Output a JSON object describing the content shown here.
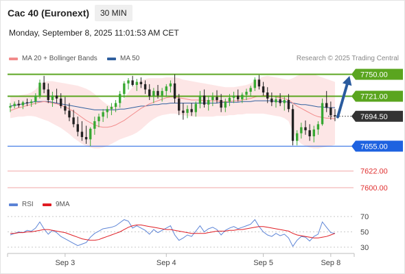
{
  "header": {
    "title": "Cac 40 (Euronext)",
    "interval": "30 MIN",
    "datetime": "Monday, September 8, 2025 11:01:53 AM CET",
    "copyright": "Research © 2025 Trading Central"
  },
  "legend": {
    "main": [
      {
        "label": "MA 20 + Bollinger Bands",
        "color": "#f28b8b"
      },
      {
        "label": "MA 50",
        "color": "#2f5f9e"
      }
    ],
    "rsi": [
      {
        "label": "RSI",
        "color": "#5b83d6"
      },
      {
        "label": "9MA",
        "color": "#e01b22"
      }
    ]
  },
  "chart_data": [
    {
      "type": "candlestick",
      "ylim": [
        7590,
        7765
      ],
      "current_price": 7694.5,
      "levels": [
        {
          "value": 7750.0,
          "label": "7750.00",
          "kind": "resistance",
          "color": "#5aa51f"
        },
        {
          "value": 7721.0,
          "label": "7721.00",
          "kind": "resistance",
          "color": "#5aa51f"
        },
        {
          "value": 7694.5,
          "label": "7694.50",
          "kind": "last",
          "color": "#333333"
        },
        {
          "value": 7655.0,
          "label": "7655.00",
          "kind": "pivot",
          "color": "#1e62e0"
        },
        {
          "value": 7622.0,
          "label": "7622.00",
          "kind": "support",
          "color": "#e03030"
        },
        {
          "value": 7600.0,
          "label": "7600.00",
          "kind": "support",
          "color": "#e03030"
        }
      ],
      "x_labels": [
        "Sep 3",
        "Sep 4",
        "Sep 5",
        "Sep 8"
      ],
      "ohlc": [
        [
          7706,
          7712,
          7700,
          7708
        ],
        [
          7708,
          7714,
          7705,
          7711
        ],
        [
          7711,
          7716,
          7706,
          7709
        ],
        [
          7709,
          7715,
          7704,
          7713
        ],
        [
          7713,
          7718,
          7708,
          7712
        ],
        [
          7712,
          7717,
          7707,
          7714
        ],
        [
          7714,
          7725,
          7710,
          7722
        ],
        [
          7722,
          7743,
          7718,
          7739
        ],
        [
          7739,
          7748,
          7725,
          7730
        ],
        [
          7730,
          7738,
          7712,
          7716
        ],
        [
          7716,
          7727,
          7707,
          7722
        ],
        [
          7722,
          7731,
          7712,
          7718
        ],
        [
          7718,
          7725,
          7705,
          7708
        ],
        [
          7708,
          7720,
          7697,
          7702
        ],
        [
          7702,
          7712,
          7688,
          7693
        ],
        [
          7693,
          7703,
          7680,
          7684
        ],
        [
          7684,
          7694,
          7668,
          7674
        ],
        [
          7674,
          7688,
          7662,
          7667
        ],
        [
          7667,
          7682,
          7658,
          7664
        ],
        [
          7664,
          7680,
          7655,
          7678
        ],
        [
          7678,
          7694,
          7670,
          7688
        ],
        [
          7688,
          7698,
          7680,
          7694
        ],
        [
          7694,
          7704,
          7687,
          7700
        ],
        [
          7700,
          7708,
          7692,
          7704
        ],
        [
          7704,
          7712,
          7696,
          7707
        ],
        [
          7707,
          7716,
          7700,
          7712
        ],
        [
          7712,
          7728,
          7706,
          7724
        ],
        [
          7724,
          7741,
          7719,
          7738
        ],
        [
          7738,
          7745,
          7730,
          7742
        ],
        [
          7742,
          7748,
          7734,
          7736
        ],
        [
          7736,
          7744,
          7728,
          7740
        ],
        [
          7740,
          7746,
          7732,
          7737
        ],
        [
          7737,
          7742,
          7724,
          7730
        ],
        [
          7730,
          7737,
          7716,
          7721
        ],
        [
          7721,
          7732,
          7712,
          7728
        ],
        [
          7728,
          7736,
          7718,
          7722
        ],
        [
          7722,
          7732,
          7714,
          7728
        ],
        [
          7728,
          7737,
          7720,
          7734
        ],
        [
          7734,
          7742,
          7726,
          7738
        ],
        [
          7738,
          7750,
          7712,
          7718
        ],
        [
          7718,
          7724,
          7696,
          7702
        ],
        [
          7702,
          7712,
          7690,
          7699
        ],
        [
          7699,
          7709,
          7692,
          7704
        ],
        [
          7704,
          7712,
          7695,
          7700
        ],
        [
          7700,
          7714,
          7694,
          7711
        ],
        [
          7711,
          7728,
          7705,
          7722
        ],
        [
          7722,
          7730,
          7706,
          7710
        ],
        [
          7710,
          7722,
          7702,
          7716
        ],
        [
          7716,
          7726,
          7708,
          7720
        ],
        [
          7720,
          7729,
          7712,
          7716
        ],
        [
          7716,
          7724,
          7700,
          7706
        ],
        [
          7706,
          7718,
          7700,
          7714
        ],
        [
          7714,
          7724,
          7708,
          7719
        ],
        [
          7719,
          7727,
          7712,
          7722
        ],
        [
          7722,
          7730,
          7714,
          7717
        ],
        [
          7717,
          7726,
          7712,
          7723
        ],
        [
          7723,
          7731,
          7716,
          7727
        ],
        [
          7727,
          7735,
          7721,
          7732
        ],
        [
          7732,
          7746,
          7728,
          7743
        ],
        [
          7743,
          7749,
          7730,
          7734
        ],
        [
          7734,
          7740,
          7722,
          7726
        ],
        [
          7726,
          7733,
          7712,
          7718
        ],
        [
          7718,
          7726,
          7708,
          7713
        ],
        [
          7713,
          7722,
          7706,
          7717
        ],
        [
          7717,
          7725,
          7708,
          7712
        ],
        [
          7712,
          7720,
          7702,
          7716
        ],
        [
          7716,
          7724,
          7700,
          7704
        ],
        [
          7704,
          7710,
          7656,
          7662
        ],
        [
          7662,
          7676,
          7656,
          7672
        ],
        [
          7672,
          7686,
          7665,
          7680
        ],
        [
          7680,
          7689,
          7670,
          7676
        ],
        [
          7676,
          7684,
          7662,
          7668
        ],
        [
          7668,
          7682,
          7660,
          7677
        ],
        [
          7677,
          7688,
          7670,
          7684
        ],
        [
          7684,
          7718,
          7682,
          7712
        ],
        [
          7712,
          7728,
          7700,
          7706
        ],
        [
          7706,
          7714,
          7690,
          7696
        ],
        [
          7696,
          7704,
          7688,
          7694.5
        ]
      ],
      "ma20": [
        7702,
        7704,
        7706,
        7707,
        7709,
        7710,
        7712,
        7713,
        7714,
        7713,
        7712,
        7711,
        7709,
        7707,
        7704,
        7701,
        7697,
        7693,
        7689,
        7686,
        7683,
        7681,
        7680,
        7680,
        7681,
        7683,
        7686,
        7689,
        7693,
        7697,
        7701,
        7705,
        7708,
        7711,
        7713,
        7715,
        7717,
        7719,
        7720,
        7720,
        7719,
        7718,
        7717,
        7716,
        7716,
        7716,
        7715,
        7715,
        7715,
        7715,
        7714,
        7714,
        7714,
        7715,
        7715,
        7716,
        7717,
        7718,
        7720,
        7721,
        7722,
        7722,
        7721,
        7720,
        7719,
        7718,
        7716,
        7712,
        7708,
        7705,
        7702,
        7699,
        7696,
        7694,
        7693,
        7692,
        7692,
        7691
      ],
      "ma50": [
        7708,
        7709,
        7710,
        7711,
        7712,
        7713,
        7714,
        7714,
        7714,
        7714,
        7713,
        7712,
        7711,
        7710,
        7709,
        7708,
        7707,
        7706,
        7705,
        7704,
        7703,
        7703,
        7703,
        7703,
        7703,
        7703,
        7704,
        7704,
        7705,
        7706,
        7707,
        7708,
        7708,
        7709,
        7710,
        7710,
        7711,
        7711,
        7712,
        7712,
        7712,
        7712,
        7712,
        7712,
        7712,
        7712,
        7712,
        7712,
        7712,
        7712,
        7713,
        7713,
        7713,
        7713,
        7713,
        7714,
        7714,
        7714,
        7715,
        7715,
        7715,
        7715,
        7715,
        7714,
        7714,
        7714,
        7713,
        7712,
        7711,
        7710,
        7710,
        7709,
        7708,
        7707,
        7707,
        7706,
        7706,
        7706
      ],
      "bb_upper": [
        7720,
        7721,
        7722,
        7723,
        7724,
        7726,
        7730,
        7736,
        7740,
        7741,
        7741,
        7740,
        7739,
        7738,
        7737,
        7736,
        7735,
        7733,
        7731,
        7728,
        7724,
        7719,
        7714,
        7710,
        7708,
        7708,
        7711,
        7718,
        7726,
        7733,
        7738,
        7742,
        7744,
        7745,
        7745,
        7745,
        7745,
        7746,
        7746,
        7746,
        7745,
        7743,
        7742,
        7741,
        7740,
        7739,
        7738,
        7737,
        7736,
        7735,
        7734,
        7733,
        7733,
        7733,
        7734,
        7735,
        7736,
        7738,
        7742,
        7745,
        7747,
        7748,
        7747,
        7746,
        7745,
        7744,
        7743,
        7745,
        7748,
        7750,
        7751,
        7751,
        7750,
        7748,
        7746,
        7744,
        7742,
        7740
      ],
      "bb_lower": [
        7692,
        7693,
        7694,
        7694,
        7695,
        7695,
        7694,
        7692,
        7690,
        7688,
        7685,
        7682,
        7679,
        7675,
        7671,
        7666,
        7662,
        7658,
        7655,
        7653,
        7652,
        7652,
        7653,
        7655,
        7658,
        7661,
        7664,
        7666,
        7668,
        7670,
        7673,
        7677,
        7682,
        7687,
        7691,
        7694,
        7696,
        7697,
        7698,
        7698,
        7697,
        7696,
        7695,
        7694,
        7694,
        7694,
        7694,
        7694,
        7694,
        7695,
        7695,
        7695,
        7696,
        7696,
        7697,
        7697,
        7698,
        7698,
        7698,
        7698,
        7698,
        7697,
        7696,
        7695,
        7694,
        7692,
        7688,
        7674,
        7664,
        7658,
        7655,
        7653,
        7652,
        7652,
        7653,
        7654,
        7655,
        7657
      ]
    },
    {
      "type": "line",
      "name": "RSI",
      "ylim": [
        20,
        80
      ],
      "yticks": [
        70,
        50,
        30
      ],
      "series": [
        {
          "name": "RSI",
          "color": "#5b83d6",
          "values": [
            46,
            48,
            50,
            49,
            52,
            51,
            55,
            63,
            54,
            47,
            52,
            49,
            44,
            41,
            38,
            35,
            32,
            34,
            36,
            43,
            48,
            51,
            54,
            55,
            56,
            58,
            62,
            66,
            64,
            55,
            58,
            55,
            52,
            47,
            53,
            49,
            52,
            55,
            58,
            46,
            39,
            42,
            46,
            44,
            51,
            58,
            50,
            54,
            56,
            53,
            46,
            52,
            55,
            57,
            54,
            56,
            58,
            60,
            66,
            57,
            50,
            46,
            44,
            48,
            45,
            47,
            42,
            31,
            39,
            44,
            43,
            38,
            44,
            47,
            63,
            56,
            49,
            48
          ]
        },
        {
          "name": "9MA",
          "color": "#e01b22",
          "values": [
            48,
            48,
            49,
            49,
            50,
            50,
            51,
            52,
            53,
            53,
            52,
            51,
            50,
            49,
            47,
            45,
            43,
            41,
            40,
            39,
            39,
            40,
            42,
            44,
            46,
            48,
            50,
            53,
            56,
            58,
            59,
            59,
            58,
            57,
            56,
            55,
            54,
            53,
            53,
            52,
            51,
            50,
            49,
            48,
            48,
            48,
            48,
            49,
            50,
            51,
            51,
            51,
            52,
            52,
            53,
            53,
            54,
            55,
            56,
            57,
            57,
            56,
            55,
            54,
            53,
            52,
            51,
            48,
            46,
            45,
            44,
            43,
            42,
            42,
            43,
            44,
            46,
            48
          ]
        }
      ]
    }
  ]
}
